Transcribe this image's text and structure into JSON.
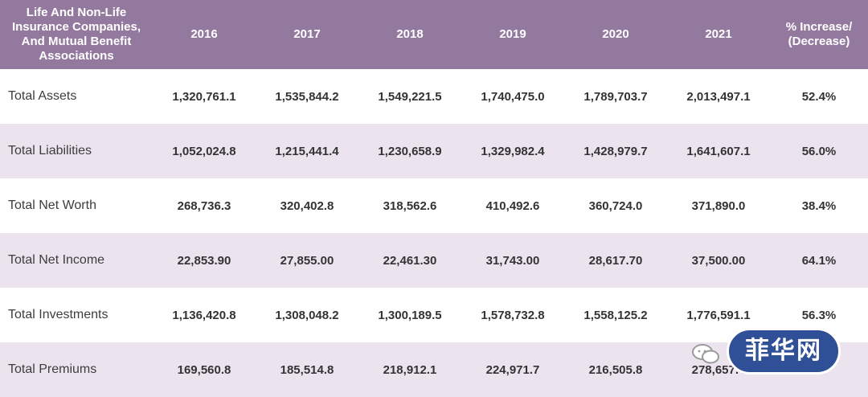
{
  "header": {
    "label": "Life And Non-Life Insurance Companies, And Mutual Benefit Associations",
    "years": [
      "2016",
      "2017",
      "2018",
      "2019",
      "2020",
      "2021"
    ],
    "change": "% Increase/ (Decrease)"
  },
  "rows": [
    {
      "label": "Total Assets",
      "values": [
        "1,320,761.1",
        "1,535,844.2",
        "1,549,221.5",
        "1,740,475.0",
        "1,789,703.7",
        "2,013,497.1"
      ],
      "change": "52.4%"
    },
    {
      "label": "Total Liabilities",
      "values": [
        "1,052,024.8",
        "1,215,441.4",
        "1,230,658.9",
        "1,329,982.4",
        "1,428,979.7",
        "1,641,607.1"
      ],
      "change": "56.0%"
    },
    {
      "label": "Total Net Worth",
      "values": [
        "268,736.3",
        "320,402.8",
        "318,562.6",
        "410,492.6",
        "360,724.0",
        "371,890.0"
      ],
      "change": "38.4%"
    },
    {
      "label": "Total Net Income",
      "values": [
        "22,853.90",
        "27,855.00",
        "22,461.30",
        "31,743.00",
        "28,617.70",
        "37,500.00"
      ],
      "change": "64.1%"
    },
    {
      "label": "Total Investments",
      "values": [
        "1,136,420.8",
        "1,308,048.2",
        "1,300,189.5",
        "1,578,732.8",
        "1,558,125.2",
        "1,776,591.1"
      ],
      "change": "56.3%"
    },
    {
      "label": "Total Premiums",
      "values": [
        "169,560.8",
        "185,514.8",
        "218,912.1",
        "224,971.7",
        "216,505.8",
        "278,657.4"
      ],
      "change": ""
    }
  ],
  "watermark": {
    "text": "菲华网",
    "colors": {
      "badge": "#2f4f96",
      "chat": "#9a9a9a"
    }
  },
  "colors": {
    "header_bg": "#93799e",
    "stripe": "#ebe4ef",
    "text": "#333333"
  }
}
